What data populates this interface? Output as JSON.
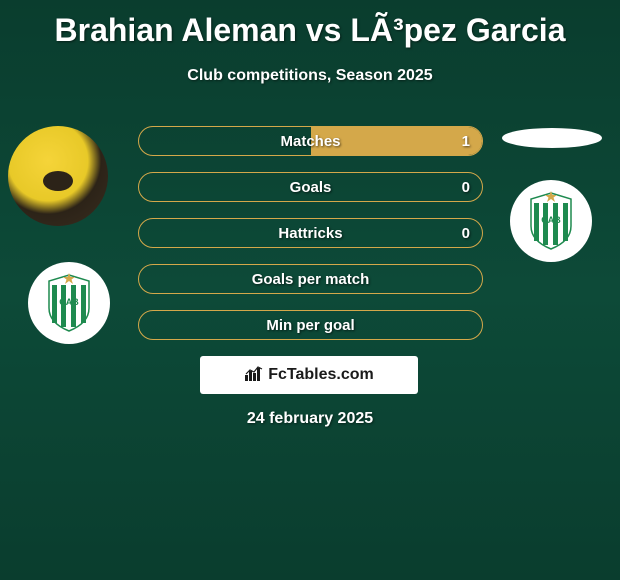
{
  "title": "Brahian Aleman vs LÃ³pez Garcia",
  "subtitle": "Club competitions, Season 2025",
  "date": "24 february 2025",
  "logo_text": "FcTables.com",
  "colors": {
    "bg_top": "#0a3d2e",
    "bg_mid": "#0d4a38",
    "accent": "#d4a84a",
    "text": "#ffffff",
    "badge_green": "#1e8a4f",
    "badge_white": "#ffffff"
  },
  "avatars": {
    "left_colors": [
      "#f5d439",
      "#e8c928",
      "#2c2318"
    ],
    "right_color": "#ffffff"
  },
  "stats": [
    {
      "label": "Matches",
      "left_value": "",
      "right_value": "1",
      "left_pct": 0,
      "right_pct": 100
    },
    {
      "label": "Goals",
      "left_value": "",
      "right_value": "0",
      "left_pct": 0,
      "right_pct": 0
    },
    {
      "label": "Hattricks",
      "left_value": "",
      "right_value": "0",
      "left_pct": 0,
      "right_pct": 0
    },
    {
      "label": "Goals per match",
      "left_value": "",
      "right_value": "",
      "left_pct": 0,
      "right_pct": 0
    },
    {
      "label": "Min per goal",
      "left_value": "",
      "right_value": "",
      "left_pct": 0,
      "right_pct": 0
    }
  ],
  "badge": {
    "text": "CAB",
    "stripe_color": "#1e8a4f",
    "bg_color": "#ffffff",
    "star_color": "#d4a84a"
  }
}
